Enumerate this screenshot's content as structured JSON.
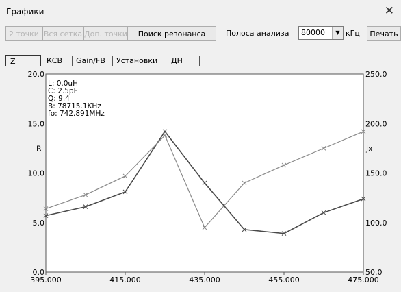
{
  "window": {
    "title": "Графики"
  },
  "toolbar": {
    "btn_2pts": "2 точки",
    "btn_grid": "Вся сетка",
    "btn_extra": "Доп. точки",
    "btn_resonance": "Поиск резонанса",
    "band_label": "Полоса анализа",
    "band_value": "80000",
    "unit": "кГц",
    "print": "Печать"
  },
  "tabs": [
    "Z",
    "КСВ",
    "Gain/FB",
    "Установки",
    "ДН"
  ],
  "info": {
    "lines": [
      "L: 0.0uH",
      "C: 2.5pF",
      "Q: 9.4",
      "B: 78715.1KHz",
      "fo: 742.891MHz"
    ]
  },
  "colors": {
    "background": "#f0f0f0",
    "plot_bg": "#ffffff",
    "series_R": "#4a4a4a",
    "series_jX": "#8a8a8a"
  },
  "chart_data": {
    "type": "line",
    "x": [
      395,
      405,
      415,
      425,
      435,
      445,
      455,
      465,
      475
    ],
    "x_ticks": [
      "395.000",
      "415.000",
      "435.000",
      "455.000",
      "475.000"
    ],
    "xlim": [
      395,
      475
    ],
    "ylabel_left": "R",
    "ylim_left": [
      0,
      20
    ],
    "y_ticks_left": [
      "0.0",
      "5.0",
      "10.0",
      "15.0",
      "20.0"
    ],
    "ylabel_right": "jx",
    "ylim_right": [
      50,
      250
    ],
    "y_ticks_right": [
      "50.0",
      "100.0",
      "150.0",
      "200.0",
      "250.0"
    ],
    "series": [
      {
        "axis": "left",
        "values": [
          5.7,
          6.6,
          8.1,
          14.2,
          9.0,
          4.3,
          3.9,
          6.0,
          7.4
        ]
      },
      {
        "axis": "right",
        "values": [
          114,
          128,
          147,
          188,
          95,
          140,
          158,
          175,
          192
        ]
      }
    ],
    "grid": false
  }
}
